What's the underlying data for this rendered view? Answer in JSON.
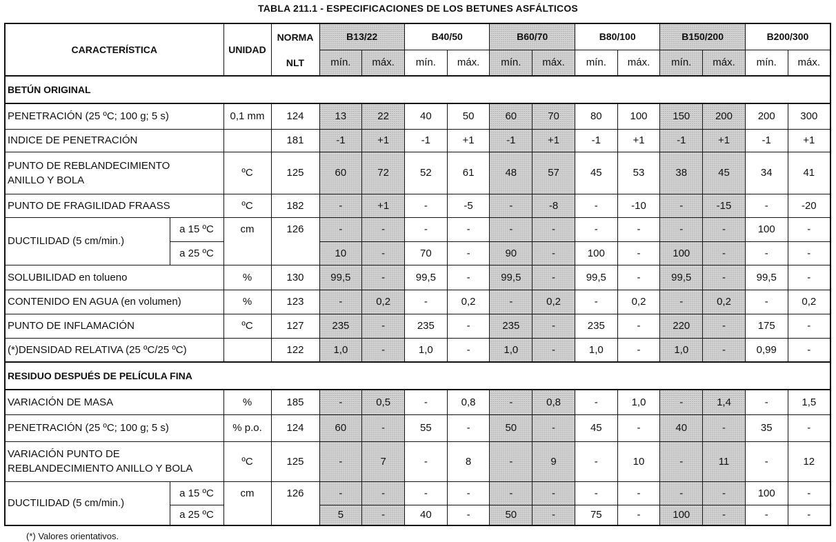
{
  "title": "TABLA 211.1 - ESPECIFICACIONES DE LOS BETUNES ASFÁLTICOS",
  "header": {
    "caracteristica": "CARACTERÍSTICA",
    "unidad": "UNIDAD",
    "norma": "NORMA",
    "nlt": "NLT",
    "grades": [
      {
        "name": "B13/22",
        "min": "mín.",
        "max": "máx."
      },
      {
        "name": "B40/50",
        "min": "mín.",
        "max": "máx."
      },
      {
        "name": "B60/70",
        "min": "mín.",
        "max": "máx."
      },
      {
        "name": "B80/100",
        "min": "mín.",
        "max": "máx."
      },
      {
        "name": "B150/200",
        "min": "mín.",
        "max": "máx."
      },
      {
        "name": "B200/300",
        "min": "mín.",
        "max": "máx."
      }
    ]
  },
  "sections": [
    {
      "title": "BETÚN ORIGINAL",
      "rows": [
        {
          "label": "PENETRACIÓN (25 ºC; 100 g; 5 s)",
          "unit": "0,1 mm",
          "norma": "124",
          "values": [
            "13",
            "22",
            "40",
            "50",
            "60",
            "70",
            "80",
            "100",
            "150",
            "200",
            "200",
            "300"
          ]
        },
        {
          "label": "INDICE DE PENETRACIÓN",
          "norma": "181",
          "values": [
            "-1",
            "+1",
            "-1",
            "+1",
            "-1",
            "+1",
            "-1",
            "+1",
            "-1",
            "+1",
            "-1",
            "+1"
          ]
        },
        {
          "label": "PUNTO DE REBLANDECIMIENTO\nANILLO Y BOLA",
          "unit": "ºC",
          "norma": "125",
          "values": [
            "60",
            "72",
            "52",
            "61",
            "48",
            "57",
            "45",
            "53",
            "38",
            "45",
            "34",
            "41"
          ]
        },
        {
          "label": "PUNTO DE FRAGILIDAD FRAASS",
          "unit": "ºC",
          "norma": "182",
          "values": [
            "-",
            "+1",
            "-",
            "-5",
            "-",
            "-8",
            "-",
            "-10",
            "-",
            "-15",
            "-",
            "-20"
          ]
        },
        {
          "label": "DUCTILIDAD (5 cm/min.)",
          "unit": "cm",
          "norma": "126",
          "subrows": [
            {
              "condition": "a 15 ºC",
              "values": [
                "-",
                "-",
                "-",
                "-",
                "-",
                "-",
                "-",
                "-",
                "-",
                "-",
                "100",
                "-"
              ]
            },
            {
              "condition": "a 25 ºC",
              "values": [
                "10",
                "-",
                "70",
                "-",
                "90",
                "-",
                "100",
                "-",
                "100",
                "-",
                "-",
                "-"
              ]
            }
          ]
        },
        {
          "label": "SOLUBILIDAD en tolueno",
          "unit": "%",
          "norma": "130",
          "values": [
            "99,5",
            "-",
            "99,5",
            "-",
            "99,5",
            "-",
            "99,5",
            "-",
            "99,5",
            "-",
            "99,5",
            "-"
          ]
        },
        {
          "label": "CONTENIDO EN AGUA (en volumen)",
          "unit": "%",
          "norma": "123",
          "values": [
            "-",
            "0,2",
            "-",
            "0,2",
            "-",
            "0,2",
            "-",
            "0,2",
            "-",
            "0,2",
            "-",
            "0,2"
          ]
        },
        {
          "label": "PUNTO DE INFLAMACIÓN",
          "unit": "ºC",
          "norma": "127",
          "values": [
            "235",
            "-",
            "235",
            "-",
            "235",
            "-",
            "235",
            "-",
            "220",
            "-",
            "175",
            "-"
          ]
        },
        {
          "label": "(*)DENSIDAD RELATIVA (25 ºC/25 ºC)",
          "norma": "122",
          "values": [
            "1,0",
            "-",
            "1,0",
            "-",
            "1,0",
            "-",
            "1,0",
            "-",
            "1,0",
            "-",
            "0,99",
            "-"
          ]
        }
      ]
    },
    {
      "title": "RESIDUO DESPUÉS DE PELÍCULA FINA",
      "rows": [
        {
          "label": "VARIACIÓN DE MASA",
          "unit": "%",
          "norma": "185",
          "values": [
            "-",
            "0,5",
            "-",
            "0,8",
            "-",
            "0,8",
            "-",
            "1,0",
            "-",
            "1,4",
            "-",
            "1,5"
          ]
        },
        {
          "label": "PENETRACIÓN (25 ºC; 100 g; 5 s)",
          "unit": "% p.o.",
          "norma": "124",
          "values": [
            "60",
            "-",
            "55",
            "-",
            "50",
            "-",
            "45",
            "-",
            "40",
            "-",
            "35",
            "-"
          ]
        },
        {
          "label": "VARIACIÓN PUNTO DE\nREBLANDECIMIENTO ANILLO Y BOLA",
          "unit": "ºC",
          "norma": "125",
          "values": [
            "-",
            "7",
            "-",
            "8",
            "-",
            "9",
            "-",
            "10",
            "-",
            "11",
            "-",
            "12"
          ]
        },
        {
          "label": "DUCTILIDAD (5 cm/min.)",
          "unit": "cm",
          "norma": "126",
          "subrows": [
            {
              "condition": "a 15 ºC",
              "values": [
                "-",
                "-",
                "-",
                "-",
                "-",
                "-",
                "-",
                "-",
                "-",
                "-",
                "100",
                "-"
              ]
            },
            {
              "condition": "a 25 ºC",
              "values": [
                "5",
                "-",
                "40",
                "-",
                "50",
                "-",
                "75",
                "-",
                "100",
                "-",
                "-",
                "-"
              ]
            }
          ]
        }
      ]
    }
  ],
  "footnote": "(*) Valores orientativos."
}
